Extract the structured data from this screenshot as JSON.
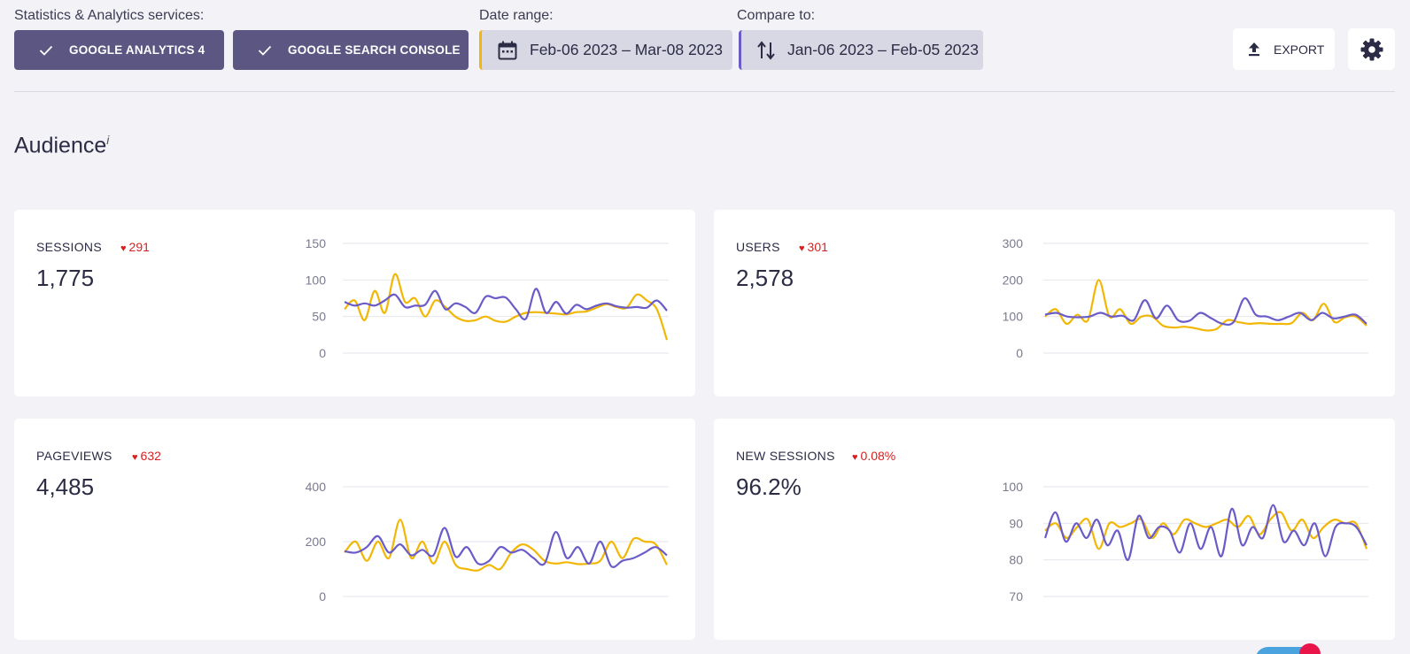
{
  "header": {
    "services_label": "Statistics & Analytics services:",
    "services": [
      "GOOGLE ANALYTICS 4",
      "GOOGLE SEARCH CONSOLE"
    ],
    "date_range_label": "Date range:",
    "date_range": "Feb-06 2023 – Mar-08 2023",
    "compare_label": "Compare to:",
    "compare_range": "Jan-06 2023 – Feb-05 2023",
    "export_label": "EXPORT"
  },
  "section": {
    "title": "Audience",
    "info": "i"
  },
  "colors": {
    "current": "#f2b705",
    "previous": "#6a5cc8",
    "negative": "#d81e1e",
    "button": "#5c5682"
  },
  "icons": [
    "check-icon",
    "calendar-icon",
    "swap-icon",
    "upload-icon",
    "gear-icon",
    "heart-icon"
  ],
  "cards": [
    {
      "metric": "SESSIONS",
      "change": "291",
      "value": "1,775"
    },
    {
      "metric": "USERS",
      "change": "301",
      "value": "2,578"
    },
    {
      "metric": "PAGEVIEWS",
      "change": "632",
      "value": "4,485"
    },
    {
      "metric": "NEW SESSIONS",
      "change": "0.08%",
      "value": "96.2%"
    }
  ],
  "chart_data": [
    {
      "type": "line",
      "title": "SESSIONS",
      "ylim": [
        0,
        150
      ],
      "yticks": [
        "0",
        "50",
        "100",
        "150"
      ],
      "series": [
        {
          "color": "#f2b705",
          "values": [
            60,
            72,
            45,
            85,
            55,
            108,
            70,
            75,
            50,
            72,
            63,
            50,
            44,
            45,
            50,
            44,
            43,
            50,
            55,
            56,
            55,
            54,
            53,
            56,
            57,
            62,
            67,
            63,
            62,
            80,
            72,
            60,
            18
          ]
        },
        {
          "color": "#6a5cc8",
          "values": [
            70,
            65,
            68,
            65,
            72,
            80,
            63,
            65,
            66,
            85,
            60,
            68,
            63,
            55,
            77,
            75,
            76,
            60,
            47,
            88,
            55,
            70,
            54,
            66,
            60,
            65,
            68,
            64,
            62,
            63,
            62,
            72,
            58
          ]
        }
      ]
    },
    {
      "type": "line",
      "title": "USERS",
      "ylim": [
        0,
        300
      ],
      "yticks": [
        "0",
        "100",
        "200",
        "300"
      ],
      "series": [
        {
          "color": "#f2b705",
          "values": [
            100,
            120,
            80,
            105,
            90,
            200,
            100,
            120,
            80,
            100,
            100,
            75,
            70,
            72,
            68,
            62,
            66,
            90,
            85,
            80,
            82,
            80,
            80,
            82,
            110,
            90,
            135,
            85,
            98,
            100,
            75
          ]
        },
        {
          "color": "#6a5cc8",
          "values": [
            105,
            110,
            100,
            98,
            100,
            110,
            100,
            102,
            90,
            145,
            95,
            130,
            90,
            88,
            110,
            95,
            80,
            85,
            150,
            105,
            100,
            90,
            100,
            110,
            90,
            110,
            95,
            100,
            105,
            80
          ]
        }
      ]
    },
    {
      "type": "line",
      "title": "PAGEVIEWS",
      "ylim": [
        0,
        400
      ],
      "yticks": [
        "0",
        "200",
        "400"
      ],
      "series": [
        {
          "color": "#f2b705",
          "values": [
            160,
            200,
            130,
            200,
            140,
            280,
            140,
            200,
            120,
            200,
            115,
            100,
            95,
            115,
            100,
            160,
            190,
            170,
            130,
            120,
            125,
            118,
            120,
            130,
            200,
            140,
            210,
            200,
            190,
            115
          ]
        },
        {
          "color": "#6a5cc8",
          "values": [
            165,
            160,
            180,
            220,
            160,
            190,
            150,
            170,
            150,
            250,
            145,
            180,
            120,
            130,
            180,
            160,
            170,
            140,
            120,
            235,
            140,
            180,
            120,
            200,
            110,
            130,
            140,
            160,
            180,
            150
          ]
        }
      ]
    },
    {
      "type": "line",
      "title": "NEW SESSIONS",
      "ylim": [
        70,
        100
      ],
      "yticks": [
        "70",
        "80",
        "90",
        "100"
      ],
      "series": [
        {
          "color": "#f2b705",
          "values": [
            88,
            90,
            86,
            89,
            91,
            83,
            90,
            89,
            90,
            91,
            86,
            90,
            87,
            91,
            90,
            89,
            90,
            91,
            89,
            92,
            87,
            91,
            93,
            88,
            91,
            86,
            89,
            91,
            90,
            90,
            83
          ]
        },
        {
          "color": "#6a5cc8",
          "values": [
            86,
            93,
            85,
            90,
            86,
            91,
            84,
            88,
            80,
            92,
            86,
            89,
            88,
            82,
            90,
            83,
            89,
            81,
            94,
            84,
            89,
            86,
            95,
            85,
            88,
            84,
            90,
            81,
            89,
            90,
            89,
            84
          ]
        }
      ]
    }
  ]
}
